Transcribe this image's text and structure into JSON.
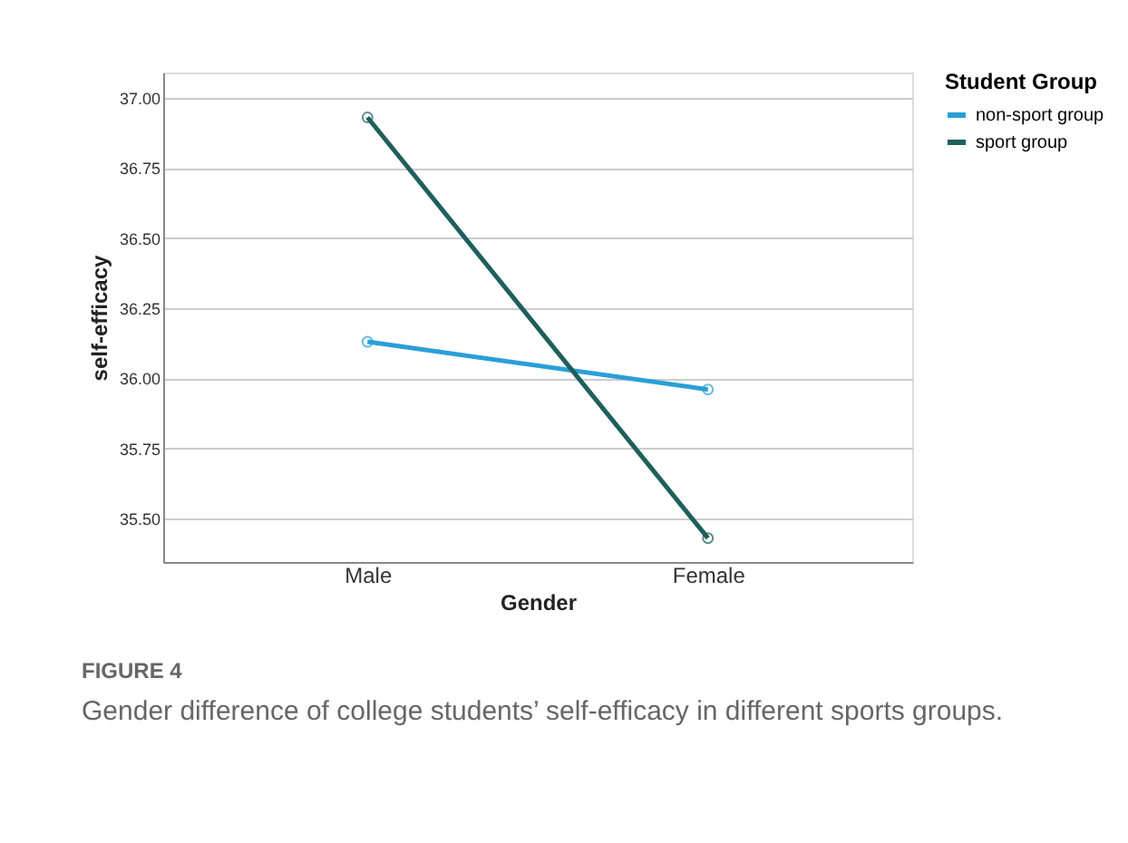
{
  "chart_data": {
    "type": "line",
    "xlabel": "Gender",
    "ylabel": "self-efficacy",
    "legend_title": "Student Group",
    "categories": [
      "Male",
      "Female"
    ],
    "series": [
      {
        "name": "non-sport group",
        "color": "#2a9fd8",
        "values": [
          36.13,
          35.96
        ]
      },
      {
        "name": "sport group",
        "color": "#1e5f5c",
        "values": [
          36.93,
          35.43
        ]
      }
    ],
    "ylim": [
      35.345,
      37.09
    ],
    "yticks": [
      {
        "value": 35.5,
        "label": "35.50"
      },
      35.75,
      {
        "value": 36.0,
        "label": "36.00"
      },
      36.25,
      {
        "value": 36.5,
        "label": "36.50"
      },
      36.75,
      {
        "value": 37.0,
        "label": "37.00"
      }
    ],
    "grid": "y",
    "legend": "top right",
    "marker": "circle",
    "line_style": "solid",
    "annotations": [
      "FIGURE 4",
      "Gender difference of college students’ self-efficacy in different sports groups."
    ]
  }
}
